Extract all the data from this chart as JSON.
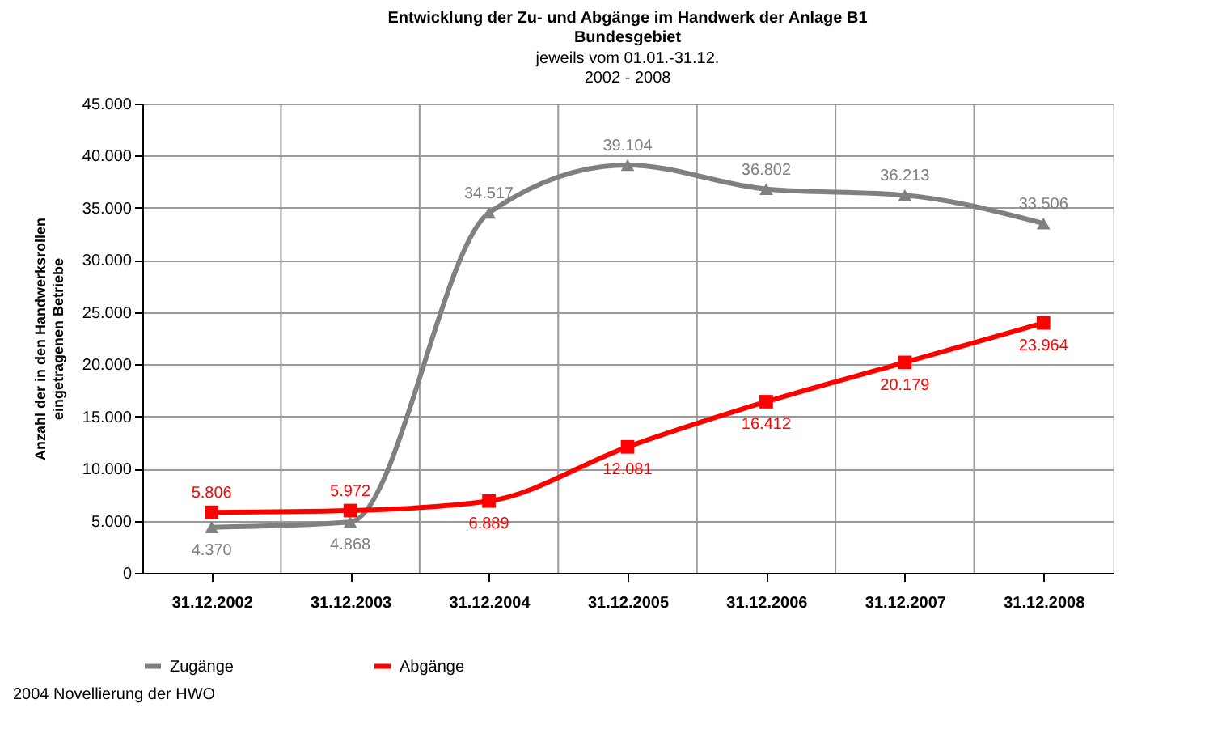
{
  "chart_data": {
    "type": "line",
    "title": [
      "Entwicklung der Zu- und Abgänge im Handwerk der Anlage B1",
      "Bundesgebiet"
    ],
    "subtitle": [
      "jeweils vom 01.01.-31.12.",
      "2002  - 2008"
    ],
    "ylabel": [
      "Anzahl der in den Handwerksrollen",
      "eingetragenen Betriebe"
    ],
    "categories": [
      "31.12.2002",
      "31.12.2003",
      "31.12.2004",
      "31.12.2005",
      "31.12.2006",
      "31.12.2007",
      "31.12.2008"
    ],
    "series": [
      {
        "name": "Zugänge",
        "color": "#808080",
        "marker": "triangle",
        "values": [
          4370,
          4868,
          34517,
          39104,
          36802,
          36213,
          33506
        ],
        "value_labels": [
          "4.370",
          "4.868",
          "34.517",
          "39.104",
          "36.802",
          "36.213",
          "33.506"
        ]
      },
      {
        "name": "Abgänge",
        "color": "#ff0000",
        "marker": "square",
        "values": [
          5806,
          5972,
          6889,
          12081,
          16412,
          20179,
          23964
        ],
        "value_labels": [
          "5.806",
          "5.972",
          "6.889",
          "12.081",
          "16.412",
          "20.179",
          "23.964"
        ]
      }
    ],
    "ylim": [
      0,
      45000
    ],
    "yticks": [
      {
        "value": 0,
        "label": "0"
      },
      {
        "value": 5000,
        "label": "5.000"
      },
      {
        "value": 10000,
        "label": "10.000"
      },
      {
        "value": 15000,
        "label": "15.000"
      },
      {
        "value": 20000,
        "label": "20.000"
      },
      {
        "value": 25000,
        "label": "25.000"
      },
      {
        "value": 30000,
        "label": "30.000"
      },
      {
        "value": 35000,
        "label": "35.000"
      },
      {
        "value": 40000,
        "label": "40.000"
      },
      {
        "value": 45000,
        "label": "45.000"
      }
    ],
    "grid": true,
    "legend": "bottom",
    "line_style": "solid",
    "annotations": [
      "2004 Novellierung der HWO"
    ]
  }
}
